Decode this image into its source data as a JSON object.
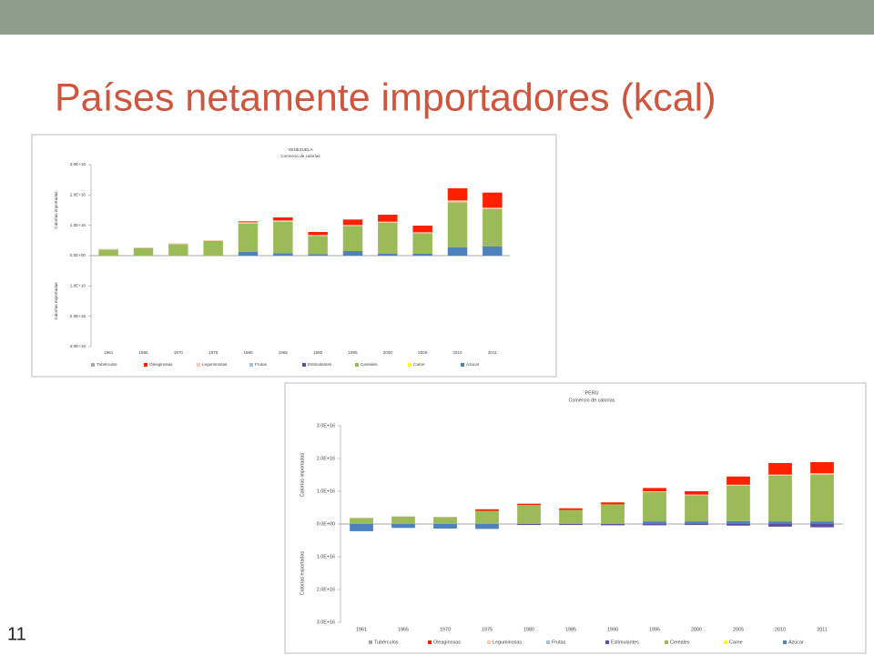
{
  "slide": {
    "title": "Países netamente importadores (kcal)",
    "page_number": "11"
  },
  "chart_data": [
    {
      "type": "bar",
      "stacked": true,
      "title": "VENEZUELA",
      "subtitle": "Comercio de calorías",
      "y_label_top": "Calorías importadas",
      "y_label_bottom": "Calorías exportadas",
      "categories": [
        "1961",
        "1965",
        "1970",
        "1975",
        "1980",
        "1985",
        "1990",
        "1995",
        "2000",
        "2005",
        "2010",
        "2011"
      ],
      "ylim": [
        -3e+16,
        3e+16
      ],
      "yticks": [
        {
          "value": 3e+16,
          "label": "3.0E+16"
        },
        {
          "value": 2e+16,
          "label": "2.0E+16"
        },
        {
          "value": 1e+16,
          "label": "1.0E+16"
        },
        {
          "value": 0,
          "label": "0.0E+00"
        },
        {
          "value": -1e+16,
          "label": "1.0E+16"
        },
        {
          "value": -2e+16,
          "label": "2.0E+16"
        },
        {
          "value": -3e+16,
          "label": "3.0E+16"
        }
      ],
      "series": [
        {
          "name": "Tubérculos",
          "color": "#a5a5a5",
          "values": [
            0,
            0,
            0,
            0,
            0,
            0,
            0,
            0,
            0,
            0,
            0,
            0
          ]
        },
        {
          "name": "Oleaginosas",
          "color": "#ff2000",
          "values": [
            0,
            0,
            0,
            0,
            300000000000000.0,
            1000000000000000.0,
            1000000000000000.0,
            1800000000000000.0,
            2300000000000000.0,
            2200000000000000.0,
            4000000000000000.0,
            5000000000000000.0
          ]
        },
        {
          "name": "Leguminosas",
          "color": "#f8cbad",
          "values": [
            200000000000000.0,
            200000000000000.0,
            300000000000000.0,
            300000000000000.0,
            500000000000000.0,
            500000000000000.0,
            300000000000000.0,
            300000000000000.0,
            400000000000000.0,
            300000000000000.0,
            600000000000000.0,
            500000000000000.0
          ]
        },
        {
          "name": "Frutas",
          "color": "#9dc3e6",
          "values": [
            0,
            0,
            0,
            0,
            0,
            0,
            0,
            0,
            0,
            0,
            0,
            0
          ]
        },
        {
          "name": "Estimulantes",
          "color": "#5b4ea0",
          "values": [
            0,
            0,
            0,
            0,
            0,
            0,
            0,
            0,
            0,
            0,
            0,
            0
          ]
        },
        {
          "name": "Cereales",
          "color": "#9bbb59",
          "values": [
            2000000000000000.0,
            2500000000000000.0,
            3800000000000000.0,
            4800000000000000.0,
            9300000000000000.0,
            1.03e+16,
            6000000000000000.0,
            8300000000000000.0,
            1.02e+16,
            6800000000000000.0,
            1.48e+16,
            1.23e+16
          ]
        },
        {
          "name": "Carne",
          "color": "#ffff00",
          "values": [
            0,
            0,
            0,
            0,
            0,
            0,
            0,
            0,
            0,
            0,
            0,
            0
          ]
        },
        {
          "name": "Azúcar",
          "color": "#4f81bd",
          "values": [
            0,
            0,
            0,
            0,
            1200000000000000.0,
            800000000000000.0,
            500000000000000.0,
            1500000000000000.0,
            600000000000000.0,
            600000000000000.0,
            2800000000000000.0,
            3000000000000000.0
          ]
        }
      ]
    },
    {
      "type": "bar",
      "stacked": true,
      "title": "PERU",
      "subtitle": "Comercio de calorías",
      "y_label_top": "Calorías importadas",
      "y_label_bottom": "Calorías exportadas",
      "categories": [
        "1961",
        "1965",
        "1970",
        "1975",
        "1980",
        "1985",
        "1990",
        "1995",
        "2000",
        "2005",
        "2010",
        "2011"
      ],
      "ylim": [
        -3e+16,
        3e+16
      ],
      "yticks": [
        {
          "value": 3e+16,
          "label": "3.0E+16"
        },
        {
          "value": 2e+16,
          "label": "2.0E+16"
        },
        {
          "value": 1e+16,
          "label": "1.0E+16"
        },
        {
          "value": 0,
          "label": "0.0E+00"
        },
        {
          "value": -1e+16,
          "label": "1.0E+16"
        },
        {
          "value": -2e+16,
          "label": "2.0E+16"
        },
        {
          "value": -3e+16,
          "label": "3.0E+16"
        }
      ],
      "series": [
        {
          "name": "Tubérculos",
          "color": "#a5a5a5",
          "values": [
            0,
            0,
            0,
            0,
            0,
            0,
            0,
            0,
            0,
            0,
            0,
            0
          ]
        },
        {
          "name": "Oleaginosas",
          "color": "#ff2000",
          "values": [
            0,
            0,
            0,
            500000000000000.0,
            400000000000000.0,
            500000000000000.0,
            600000000000000.0,
            1000000000000000.0,
            1000000000000000.0,
            2500000000000000.0,
            3500000000000000.0,
            3400000000000000.0
          ]
        },
        {
          "name": "Leguminosas",
          "color": "#f8cbad",
          "values": [
            100000000000000.0,
            0,
            100000000000000.0,
            0,
            0,
            0,
            0,
            200000000000000.0,
            200000000000000.0,
            300000000000000.0,
            300000000000000.0,
            400000000000000.0
          ]
        },
        {
          "name": "Frutas",
          "color": "#9dc3e6",
          "values": [
            0,
            0,
            0,
            0,
            0,
            0,
            0,
            0,
            0,
            0,
            0,
            0
          ]
        },
        {
          "name": "Estimulantes",
          "color": "#5b4ea0",
          "values": [
            0,
            0,
            0,
            0,
            -300000000000000.0,
            -300000000000000.0,
            -400000000000000.0,
            -400000000000000.0,
            -300000000000000.0,
            -500000000000000.0,
            -800000000000000.0,
            -1000000000000000.0
          ]
        },
        {
          "name": "Cereales",
          "color": "#9bbb59",
          "values": [
            1800000000000000.0,
            2300000000000000.0,
            2100000000000000.0,
            4000000000000000.0,
            5800000000000000.0,
            4300000000000000.0,
            6000000000000000.0,
            9000000000000000.0,
            8000000000000000.0,
            1.08e+16,
            1.4e+16,
            1.43e+16
          ]
        },
        {
          "name": "Carne",
          "color": "#ffff00",
          "values": [
            0,
            0,
            0,
            0,
            0,
            0,
            0,
            0,
            0,
            0,
            0,
            0
          ]
        },
        {
          "name": "Azúcar",
          "color": "#4f81bd",
          "values": [
            -2200000000000000.0,
            -1200000000000000.0,
            -1400000000000000.0,
            -1500000000000000.0,
            0,
            0,
            0,
            800000000000000.0,
            800000000000000.0,
            900000000000000.0,
            800000000000000.0,
            800000000000000.0
          ]
        }
      ]
    }
  ]
}
